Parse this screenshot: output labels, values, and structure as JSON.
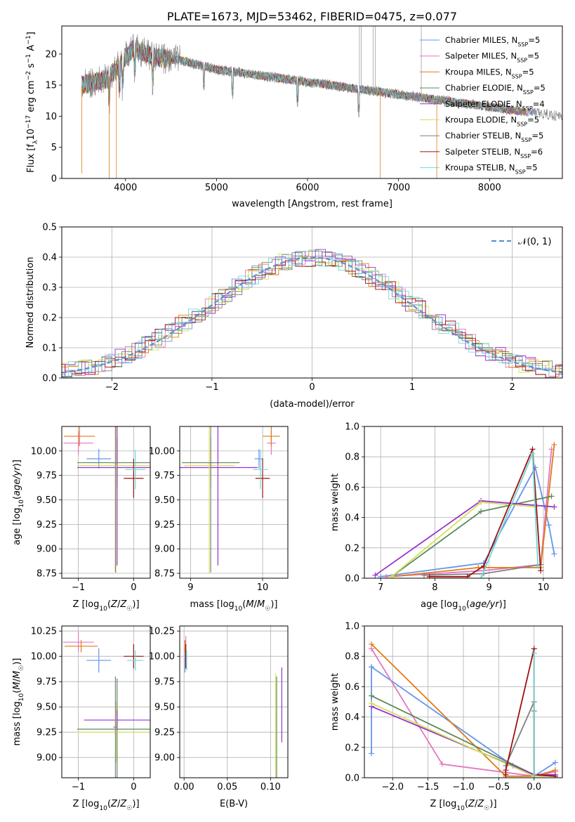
{
  "colors": {
    "Chabrier MILES": "#6495ed",
    "Salpeter MILES": "#e377c2",
    "Kroupa MILES": "#e07b16",
    "Chabrier ELODIE": "#5b8a5b",
    "Salpeter ELODIE": "#9932cc",
    "Kroupa ELODIE": "#d4e157",
    "Chabrier STELIB": "#808080",
    "Salpeter STELIB": "#a01010",
    "Kroupa STELIB": "#70d8d8"
  },
  "chart_data": [
    {
      "id": "spectrum",
      "type": "line",
      "title": "PLATE=1673, MJD=53462, FIBERID=0475, z=0.077",
      "xlabel": "wavelength [Angstrom, rest frame]",
      "ylabel": "Flux [fλ10⁻¹⁷ erg cm⁻² s⁻¹ A⁻¹]",
      "xlim": [
        3300,
        8800
      ],
      "ylim": [
        0,
        24.5
      ],
      "xticks": [
        4000,
        5000,
        6000,
        7000,
        8000
      ],
      "yticks": [
        0,
        5,
        10,
        15,
        20
      ],
      "legend_position": "top-right",
      "legend": [
        {
          "label": "Chabrier MILES, N_SSP=5",
          "base": "Chabrier MILES, N",
          "sub": "SSP",
          "tail": "=5",
          "model": "Chabrier MILES"
        },
        {
          "label": "Salpeter MILES, N_SSP=5",
          "base": "Salpeter MILES, N",
          "sub": "SSP",
          "tail": "=5",
          "model": "Salpeter MILES"
        },
        {
          "label": "Kroupa MILES, N_SSP=5",
          "base": "Kroupa MILES, N",
          "sub": "SSP",
          "tail": "=5",
          "model": "Kroupa MILES"
        },
        {
          "label": "Chabrier ELODIE, N_SSP=5",
          "base": "Chabrier ELODIE, N",
          "sub": "SSP",
          "tail": "=5",
          "model": "Chabrier ELODIE"
        },
        {
          "label": "Salpeter ELODIE, N_SSP=4",
          "base": "Salpeter ELODIE, N",
          "sub": "SSP",
          "tail": "=4",
          "model": "Salpeter ELODIE"
        },
        {
          "label": "Kroupa ELODIE, N_SSP=5",
          "base": "Kroupa ELODIE, N",
          "sub": "SSP",
          "tail": "=5",
          "model": "Kroupa ELODIE"
        },
        {
          "label": "Chabrier STELIB, N_SSP=5",
          "base": "Chabrier STELIB, N",
          "sub": "SSP",
          "tail": "=5",
          "model": "Chabrier STELIB"
        },
        {
          "label": "Salpeter STELIB, N_SSP=6",
          "base": "Salpeter STELIB, N",
          "sub": "SSP",
          "tail": "=6",
          "model": "Salpeter STELIB"
        },
        {
          "label": "Kroupa STELIB, N_SSP=5",
          "base": "Kroupa STELIB, N",
          "sub": "SSP",
          "tail": "=5",
          "model": "Kroupa STELIB"
        }
      ],
      "continuum": [
        [
          3520,
          15.0
        ],
        [
          3800,
          16.0
        ],
        [
          4000,
          19.5
        ],
        [
          4100,
          21.0
        ],
        [
          4300,
          19.5
        ],
        [
          4600,
          19.0
        ],
        [
          5000,
          17.5
        ],
        [
          5500,
          16.5
        ],
        [
          6000,
          15.5
        ],
        [
          6500,
          14.5
        ],
        [
          7000,
          13.5
        ],
        [
          7500,
          12.5
        ],
        [
          8000,
          11.5
        ],
        [
          8500,
          10.5
        ],
        [
          8800,
          10.0
        ]
      ]
    },
    {
      "id": "residual-histogram",
      "type": "line",
      "xlabel": "(data-model)/error",
      "ylabel": "Normed distribution",
      "xlim": [
        -2.5,
        2.5
      ],
      "ylim": [
        0,
        0.5
      ],
      "xticks": [
        -2,
        -1,
        0,
        1,
        2
      ],
      "yticks": [
        0.0,
        0.1,
        0.2,
        0.3,
        0.4,
        0.5
      ],
      "legend_position": "top-right",
      "legend": [
        {
          "label": "N(0,1)",
          "text": "𝒩(0, 1)"
        }
      ],
      "reference_curve": {
        "name": "N(0,1)",
        "mean": 0,
        "sigma": 1,
        "style": "dashed"
      },
      "bin_width": 0.1,
      "approx_peak": 0.4
    },
    {
      "id": "age-vs-Z",
      "type": "scatter",
      "xlabel": "Z [log10(Z/Z☉)]",
      "ylabel": "age  [log10(age/yr)]",
      "xlim": [
        -1.3,
        0.3
      ],
      "ylim": [
        8.7,
        10.25
      ],
      "xticks": [
        -1,
        0
      ],
      "yticks": [
        8.75,
        9.0,
        9.25,
        9.5,
        9.75,
        10.0
      ],
      "points": [
        {
          "model": "Chabrier MILES",
          "x": -0.63,
          "y": 9.92,
          "xerr": 0.22,
          "yerr": 0.1
        },
        {
          "model": "Salpeter MILES",
          "x": -1.0,
          "y": 10.08,
          "xerr": 0.27,
          "yerr": 0.12
        },
        {
          "model": "Kroupa MILES",
          "x": -0.98,
          "y": 10.15,
          "xerr": 0.28,
          "yerr": 0.1
        },
        {
          "model": "Chabrier ELODIE",
          "x": -0.3,
          "y": 9.88,
          "xerr": 0.72,
          "yerr": 0.25
        },
        {
          "model": "Salpeter ELODIE",
          "x": -0.3,
          "y": 9.83,
          "xerr": 0.72,
          "yerr": 1.0
        },
        {
          "model": "Kroupa ELODIE",
          "x": -0.32,
          "y": 9.85,
          "xerr": 0.7,
          "yerr": 1.1
        },
        {
          "model": "Chabrier STELIB",
          "x": -0.33,
          "y": 9.88,
          "xerr": 0.05,
          "yerr": 1.12
        },
        {
          "model": "Salpeter STELIB",
          "x": 0.0,
          "y": 9.72,
          "xerr": 0.18,
          "yerr": 0.2
        },
        {
          "model": "Kroupa STELIB",
          "x": 0.03,
          "y": 9.81,
          "xerr": 0.18,
          "yerr": 0.2
        }
      ]
    },
    {
      "id": "age-vs-mass",
      "type": "scatter",
      "xlabel": "mass [log10(M/M☉)]",
      "xlim": [
        8.85,
        10.35
      ],
      "ylim": [
        8.7,
        10.25
      ],
      "xticks": [
        9,
        10
      ],
      "yticks": [
        8.75,
        9.0,
        9.25,
        9.5,
        9.75,
        10.0
      ],
      "points": [
        {
          "model": "Chabrier MILES",
          "x": 9.95,
          "y": 9.92,
          "xerr": 0.06,
          "yerr": 0.1
        },
        {
          "model": "Salpeter MILES",
          "x": 10.12,
          "y": 10.08,
          "xerr": 0.06,
          "yerr": 0.12
        },
        {
          "model": "Kroupa MILES",
          "x": 10.12,
          "y": 10.15,
          "xerr": 0.12,
          "yerr": 0.1
        },
        {
          "model": "Chabrier ELODIE",
          "x": 9.28,
          "y": 9.88,
          "xerr": 0.4,
          "yerr": 0.25
        },
        {
          "model": "Salpeter ELODIE",
          "x": 9.38,
          "y": 9.83,
          "xerr": 0.55,
          "yerr": 1.0
        },
        {
          "model": "Kroupa ELODIE",
          "x": 9.26,
          "y": 9.85,
          "xerr": 0.35,
          "yerr": 1.1
        },
        {
          "model": "Chabrier STELIB",
          "x": 9.28,
          "y": 9.88,
          "xerr": 0.04,
          "yerr": 1.12
        },
        {
          "model": "Salpeter STELIB",
          "x": 10.0,
          "y": 9.72,
          "xerr": 0.1,
          "yerr": 0.2
        },
        {
          "model": "Kroupa STELIB",
          "x": 9.97,
          "y": 9.81,
          "xerr": 0.1,
          "yerr": 0.2
        }
      ]
    },
    {
      "id": "mass-weight-vs-age",
      "type": "line",
      "xlabel": "age  [log10(age/yr)]",
      "ylabel": "mass weight",
      "xlim": [
        6.7,
        10.35
      ],
      "ylim": [
        0,
        1.0
      ],
      "xticks": [
        7,
        8,
        9,
        10
      ],
      "yticks": [
        0.0,
        0.2,
        0.4,
        0.6,
        0.8,
        1.0
      ],
      "series": [
        {
          "model": "Chabrier MILES",
          "x": [
            7.0,
            8.9,
            9.85,
            10.1,
            10.2
          ],
          "y": [
            0.01,
            0.1,
            0.73,
            0.35,
            0.16
          ]
        },
        {
          "model": "Salpeter MILES",
          "x": [
            7.1,
            8.9,
            9.95,
            10.15
          ],
          "y": [
            0.01,
            0.05,
            0.09,
            0.85
          ]
        },
        {
          "model": "Kroupa MILES",
          "x": [
            7.2,
            8.8,
            9.95,
            10.2
          ],
          "y": [
            0.01,
            0.07,
            0.07,
            0.88
          ]
        },
        {
          "model": "Chabrier ELODIE",
          "x": [
            7.2,
            8.85,
            10.15
          ],
          "y": [
            0.01,
            0.44,
            0.54
          ]
        },
        {
          "model": "Salpeter ELODIE",
          "x": [
            6.9,
            8.85,
            10.2
          ],
          "y": [
            0.02,
            0.51,
            0.47
          ]
        },
        {
          "model": "Kroupa ELODIE",
          "x": [
            7.2,
            8.85,
            9.85
          ],
          "y": [
            0.01,
            0.5,
            0.47
          ]
        },
        {
          "model": "Chabrier STELIB",
          "x": [
            7.8,
            8.9,
            9.95
          ],
          "y": [
            0.02,
            0.03,
            0.09
          ]
        },
        {
          "model": "Salpeter STELIB",
          "x": [
            7.9,
            8.6,
            8.9,
            9.8,
            9.95
          ],
          "y": [
            0.01,
            0.01,
            0.08,
            0.85,
            0.05
          ]
        },
        {
          "model": "Kroupa STELIB",
          "x": [
            8.85,
            9.8,
            9.9
          ],
          "y": [
            0.0,
            0.82,
            0.08
          ]
        }
      ]
    },
    {
      "id": "mass-vs-Z",
      "type": "scatter",
      "xlabel": "Z [log10(Z/Z☉)]",
      "ylabel": "mass [log10(M/M☉)]",
      "xlim": [
        -1.3,
        0.3
      ],
      "ylim": [
        8.8,
        10.3
      ],
      "xticks": [
        -1,
        0
      ],
      "yticks": [
        9.0,
        9.25,
        9.5,
        9.75,
        10.0,
        10.25
      ],
      "points": [
        {
          "model": "Chabrier MILES",
          "x": -0.63,
          "y": 9.96,
          "xerr": 0.22,
          "yerr": 0.12
        },
        {
          "model": "Salpeter MILES",
          "x": -1.0,
          "y": 10.14,
          "xerr": 0.28,
          "yerr": 0.1
        },
        {
          "model": "Kroupa MILES",
          "x": -0.95,
          "y": 10.1,
          "xerr": 0.3,
          "yerr": 0.06
        },
        {
          "model": "Chabrier ELODIE",
          "x": -0.3,
          "y": 9.28,
          "xerr": 0.72,
          "yerr": 0.5
        },
        {
          "model": "Salpeter ELODIE",
          "x": -0.3,
          "y": 9.37,
          "xerr": 0.6,
          "yerr": 0.1
        },
        {
          "model": "Kroupa ELODIE",
          "x": -0.32,
          "y": 9.25,
          "xerr": 0.75,
          "yerr": 0.3
        },
        {
          "model": "Chabrier STELIB",
          "x": -0.33,
          "y": 9.3,
          "xerr": 0.04,
          "yerr": 0.5
        },
        {
          "model": "Salpeter STELIB",
          "x": 0.0,
          "y": 10.0,
          "xerr": 0.18,
          "yerr": 0.12
        },
        {
          "model": "Kroupa STELIB",
          "x": 0.03,
          "y": 9.96,
          "xerr": 0.15,
          "yerr": 0.1
        }
      ]
    },
    {
      "id": "mass-vs-EBV",
      "type": "scatter",
      "xlabel": "E(B-V)",
      "xlim": [
        -0.005,
        0.12
      ],
      "ylim": [
        8.8,
        10.3
      ],
      "xticks": [
        0.0,
        0.05,
        0.1
      ],
      "yticks": [
        9.0,
        9.25,
        9.5,
        9.75,
        10.0,
        10.25
      ],
      "points": [
        {
          "model": "Chabrier MILES",
          "x": 0.001,
          "y": 9.96,
          "xerr": 0,
          "yerr": 0.12
        },
        {
          "model": "Salpeter MILES",
          "x": 0.002,
          "y": 10.1,
          "xerr": 0,
          "yerr": 0.1
        },
        {
          "model": "Kroupa MILES",
          "x": 0.001,
          "y": 10.1,
          "xerr": 0,
          "yerr": 0.06
        },
        {
          "model": "Chabrier ELODIE",
          "x": 0.107,
          "y": 9.3,
          "xerr": 0,
          "yerr": 0.5
        },
        {
          "model": "Salpeter ELODIE",
          "x": 0.113,
          "y": 9.52,
          "xerr": 0,
          "yerr": 0.37
        },
        {
          "model": "Kroupa ELODIE",
          "x": 0.106,
          "y": 9.28,
          "xerr": 0,
          "yerr": 0.55
        },
        {
          "model": "Chabrier STELIB",
          "x": 0.002,
          "y": 10.0,
          "xerr": 0,
          "yerr": 0.12
        },
        {
          "model": "Salpeter STELIB",
          "x": 0.002,
          "y": 10.0,
          "xerr": 0,
          "yerr": 0.12
        },
        {
          "model": "Kroupa STELIB",
          "x": 0.003,
          "y": 9.96,
          "xerr": 0,
          "yerr": 0.1
        }
      ]
    },
    {
      "id": "mass-weight-vs-Z",
      "type": "line",
      "xlabel": "Z [log10(Z/Z☉)]",
      "ylabel": "mass weight",
      "xlim": [
        -2.4,
        0.4
      ],
      "ylim": [
        0,
        1.0
      ],
      "xticks": [
        -2.0,
        -1.5,
        -1.0,
        -0.5,
        0.0
      ],
      "yticks": [
        0.0,
        0.2,
        0.4,
        0.6,
        0.8,
        1.0
      ],
      "series": [
        {
          "model": "Chabrier MILES",
          "x": [
            -2.3,
            -2.3,
            -2.3,
            -0.3,
            0.0,
            0.3
          ],
          "y": [
            0.16,
            0.73,
            0.73,
            0.08,
            0.01,
            0.1
          ]
        },
        {
          "model": "Salpeter MILES",
          "x": [
            -2.3,
            -1.3,
            0.0,
            0.3
          ],
          "y": [
            0.85,
            0.09,
            0.01,
            0.04
          ]
        },
        {
          "model": "Kroupa MILES",
          "x": [
            -2.3,
            -0.4,
            0.0,
            0.3
          ],
          "y": [
            0.88,
            0.01,
            0.01,
            0.05
          ]
        },
        {
          "model": "Chabrier ELODIE",
          "x": [
            -2.3,
            0.0,
            0.0
          ],
          "y": [
            0.54,
            0.02,
            0.44
          ]
        },
        {
          "model": "Salpeter ELODIE",
          "x": [
            -2.3,
            0.0,
            0.3
          ],
          "y": [
            0.47,
            0.02,
            0.02
          ]
        },
        {
          "model": "Kroupa ELODIE",
          "x": [
            -2.3,
            0.0,
            0.3
          ],
          "y": [
            0.49,
            0.01,
            0.01
          ]
        },
        {
          "model": "Chabrier STELIB",
          "x": [
            -0.4,
            0.0,
            0.0,
            0.3
          ],
          "y": [
            0.08,
            0.5,
            0.02,
            0.01
          ]
        },
        {
          "model": "Salpeter STELIB",
          "x": [
            -0.4,
            -0.4,
            0.0,
            0.0,
            0.3
          ],
          "y": [
            0.02,
            0.05,
            0.85,
            0.02,
            0.01
          ]
        },
        {
          "model": "Kroupa STELIB",
          "x": [
            0.0,
            0.0
          ],
          "y": [
            0.82,
            0.02
          ]
        }
      ]
    }
  ]
}
